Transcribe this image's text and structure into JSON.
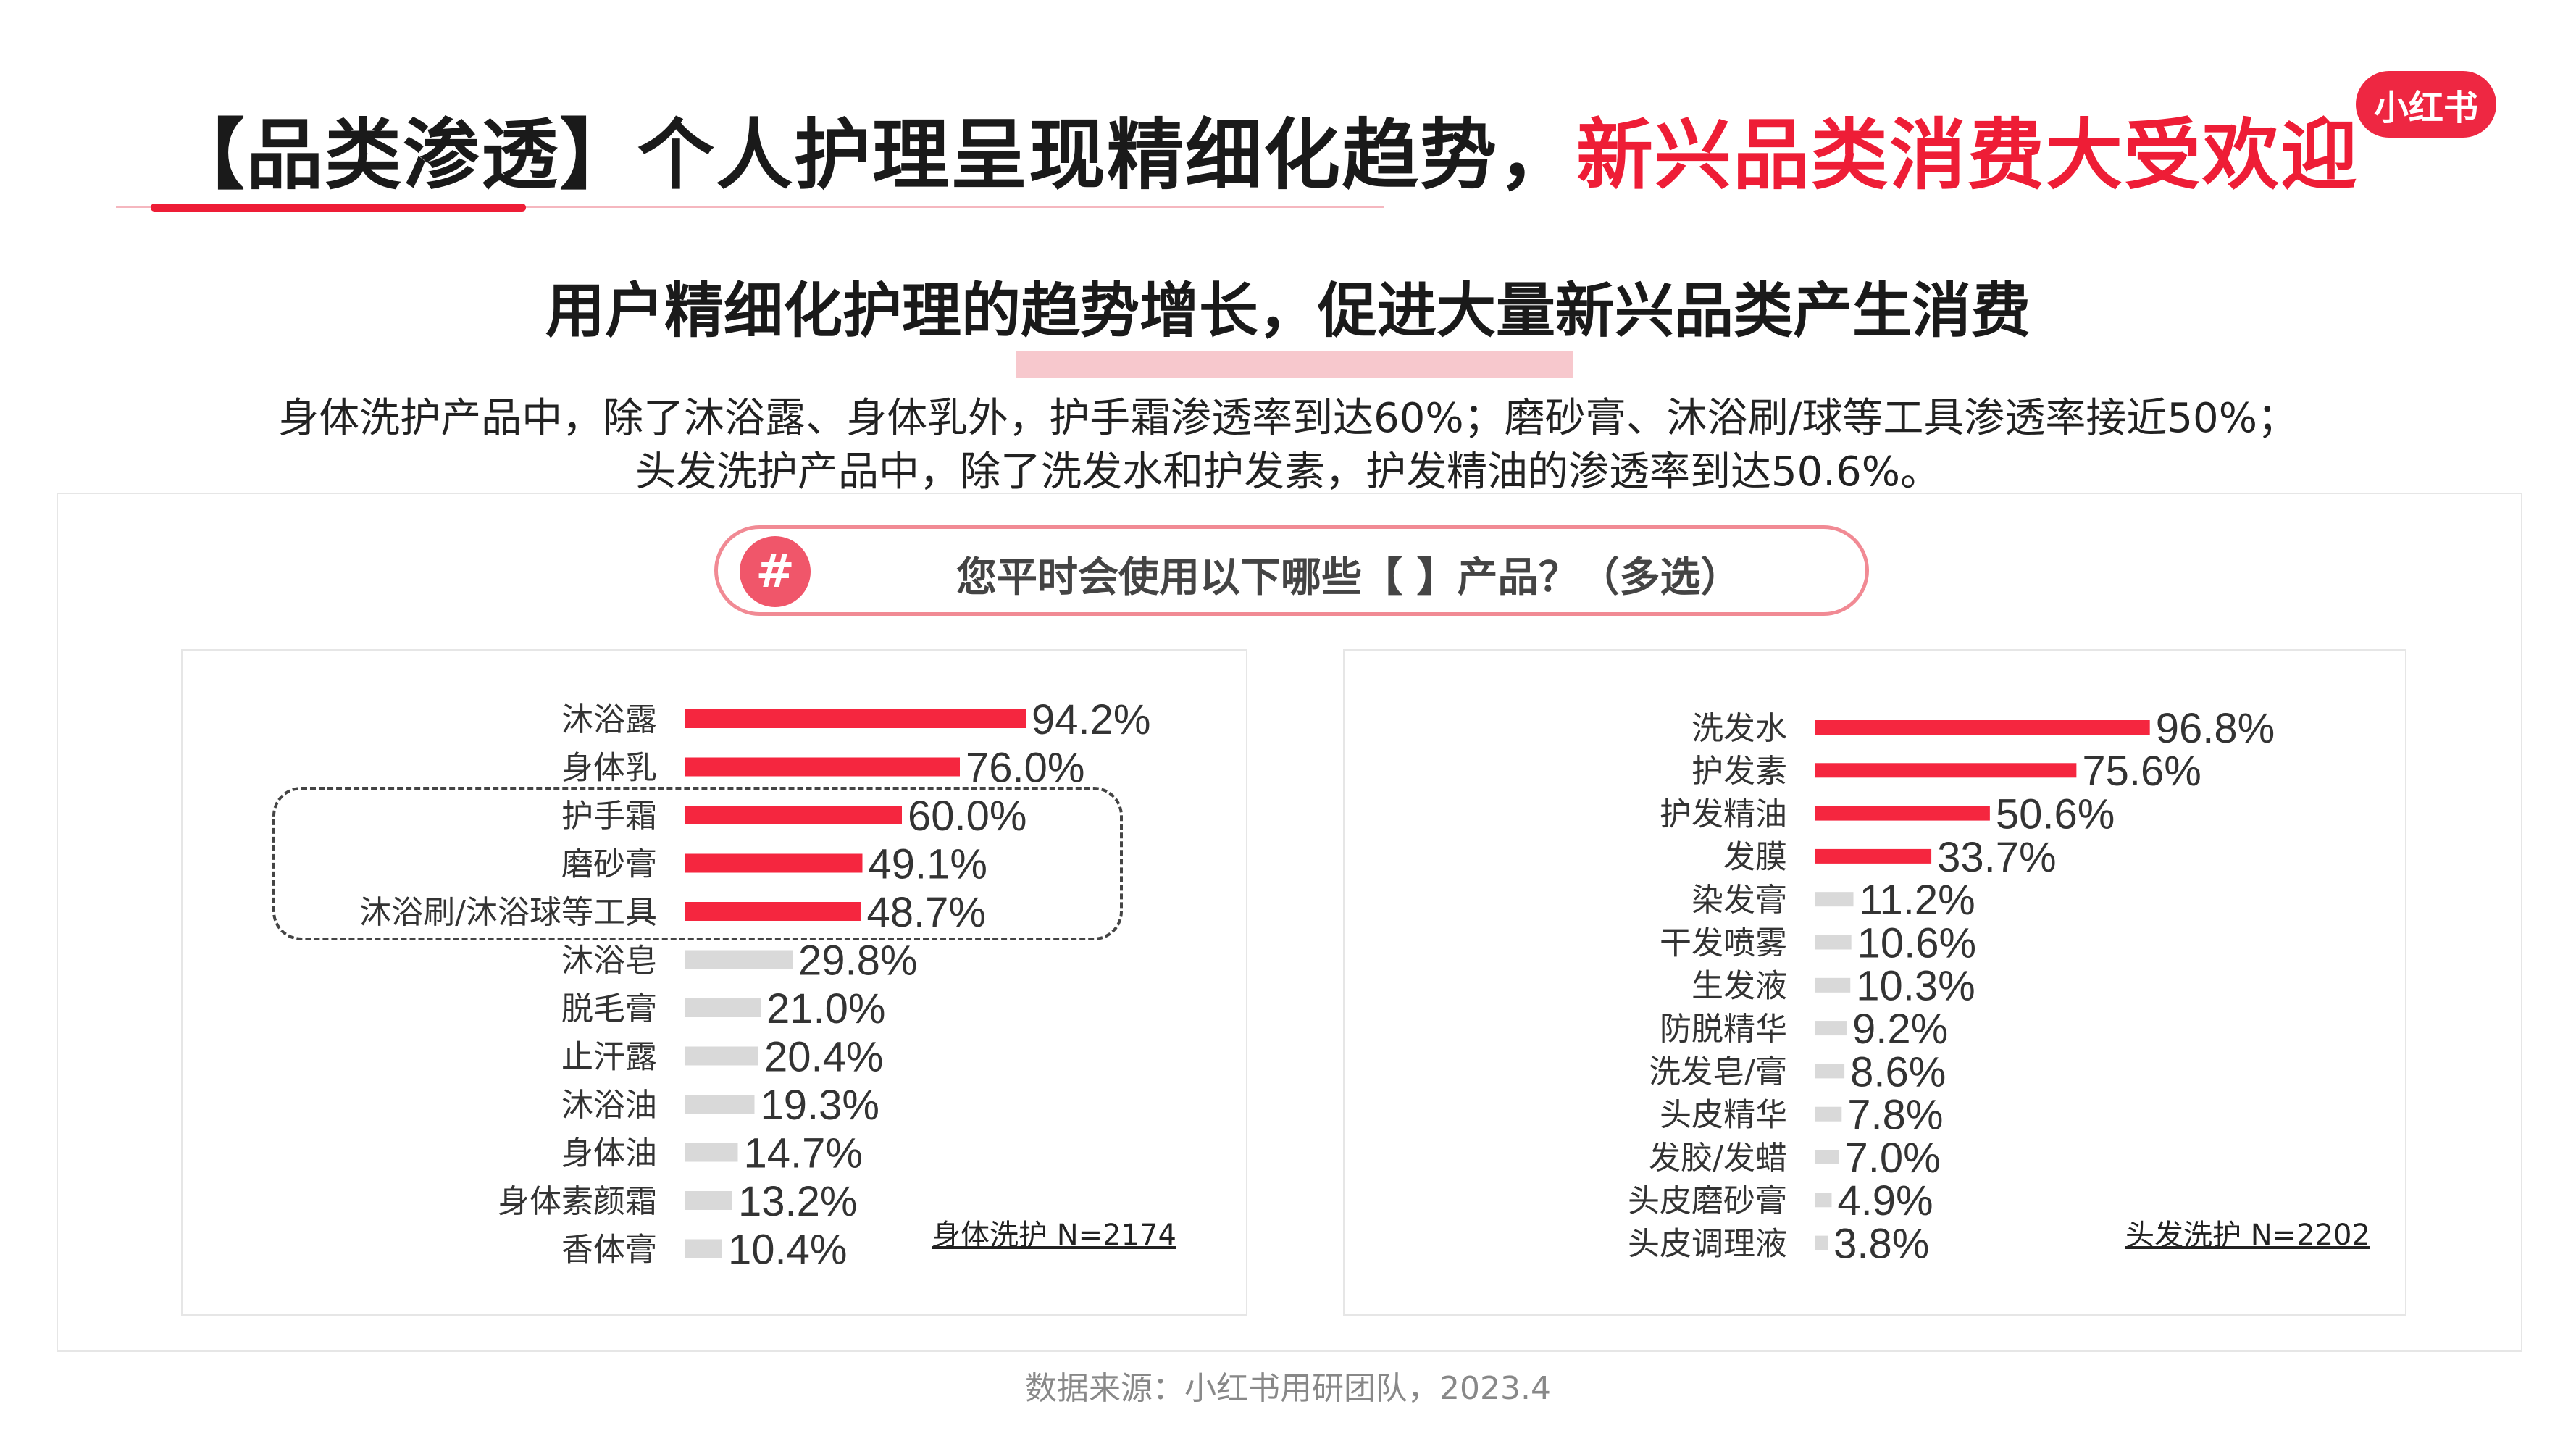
{
  "header": {
    "title_main": "【品类渗透】个人护理呈现精细化趋势，",
    "title_red": "新兴品类消费大受欢迎",
    "logo": "小红书"
  },
  "subtitle": "用户精细化护理的趋势增长，促进大量新兴品类产生消费",
  "description": [
    "身体洗护产品中，除了沐浴露、身体乳外，护手霜渗透率到达60%；磨砂膏、沐浴刷/球等工具渗透率接近50%；",
    "头发洗护产品中，除了洗发水和护发素，护发精油的渗透率到达50.6%。"
  ],
  "question": {
    "icon": "#",
    "text": "您平时会使用以下哪些【 】产品？（多选）"
  },
  "colors": {
    "accent": "#ee1d36",
    "bar_highlight": "#f5263f",
    "bar_muted": "#d9d9d9"
  },
  "chart_data": [
    {
      "type": "bar",
      "orientation": "horizontal",
      "categories": [
        "沐浴露",
        "身体乳",
        "护手霜",
        "磨砂膏",
        "沐浴刷/沐浴球等工具",
        "沐浴皂",
        "脱毛膏",
        "止汗露",
        "沐浴油",
        "身体油",
        "身体素颜霜",
        "香体膏"
      ],
      "values": [
        94.2,
        76.0,
        60.0,
        49.1,
        48.7,
        29.8,
        21.0,
        20.4,
        19.3,
        14.7,
        13.2,
        10.4
      ],
      "labels": [
        "94.2%",
        "76.0%",
        "60.0%",
        "49.1%",
        "48.7%",
        "29.8%",
        "21.0%",
        "20.4%",
        "19.3%",
        "14.7%",
        "13.2%",
        "10.4%"
      ],
      "highlight_count": 5,
      "note": "身体洗护 N=2174",
      "xlim": [
        0,
        100
      ]
    },
    {
      "type": "bar",
      "orientation": "horizontal",
      "categories": [
        "洗发水",
        "护发素",
        "护发精油",
        "发膜",
        "染发膏",
        "干发喷雾",
        "生发液",
        "防脱精华",
        "洗发皂/膏",
        "头皮精华",
        "发胶/发蜡",
        "头皮磨砂膏",
        "头皮调理液"
      ],
      "values": [
        96.8,
        75.6,
        50.6,
        33.7,
        11.2,
        10.6,
        10.3,
        9.2,
        8.6,
        7.8,
        7.0,
        4.9,
        3.8
      ],
      "labels": [
        "96.8%",
        "75.6%",
        "50.6%",
        "33.7%",
        "11.2%",
        "10.6%",
        "10.3%",
        "9.2%",
        "8.6%",
        "7.8%",
        "7.0%",
        "4.9%",
        "3.8%"
      ],
      "highlight_count": 4,
      "note": "头发洗护 N=2202",
      "xlim": [
        0,
        100
      ]
    }
  ],
  "source": "数据来源：小红书用研团队，2023.4"
}
